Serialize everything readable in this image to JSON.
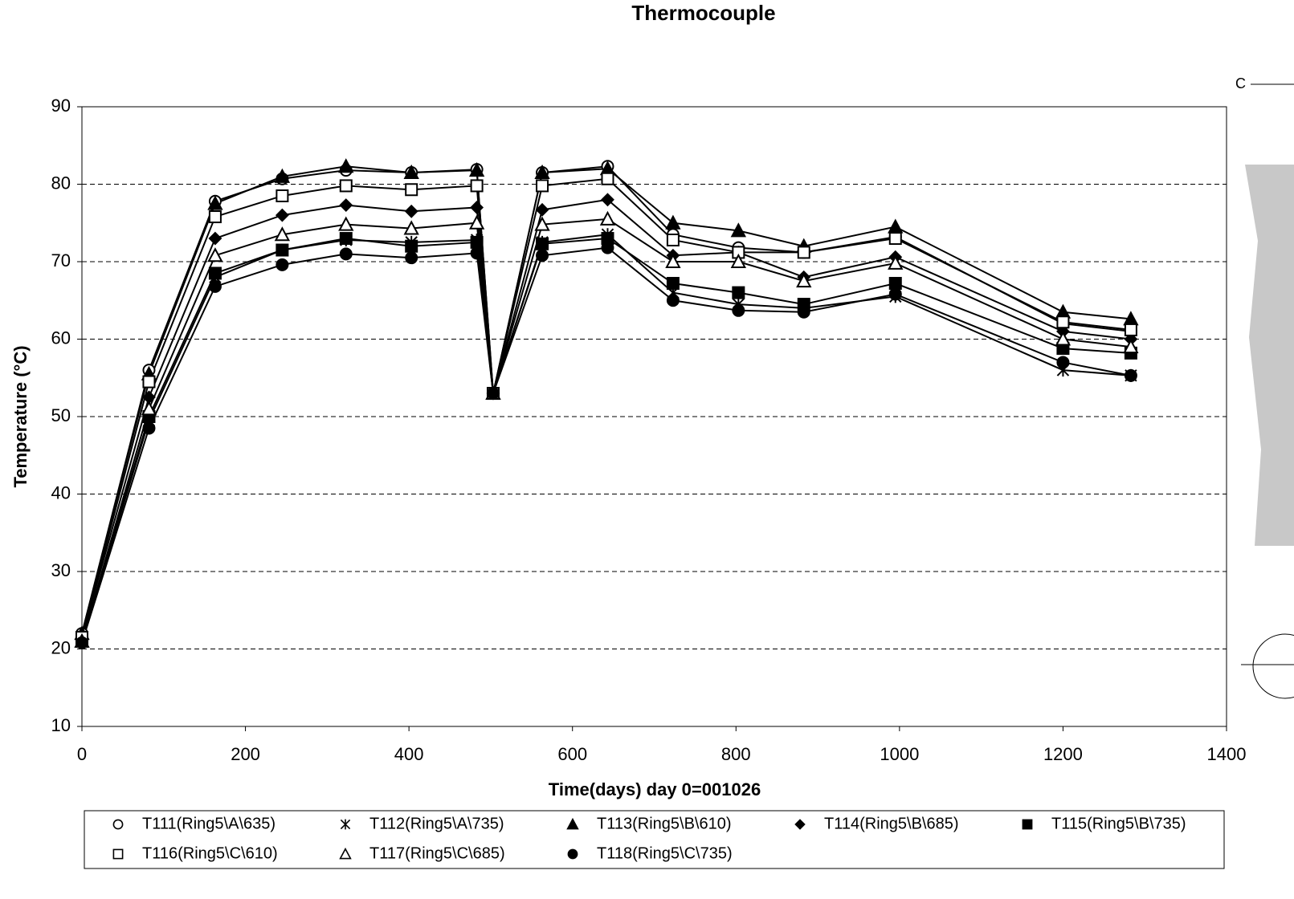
{
  "chart_data": {
    "type": "line",
    "title": "Thermocouple",
    "x_label": "Time(days)  day 0=001026",
    "y_label": "Temperature (°C)",
    "side_label": "C",
    "xlim": [
      0,
      1400
    ],
    "xticks": [
      0,
      200,
      400,
      600,
      800,
      1000,
      1200,
      1400
    ],
    "ylim": [
      10,
      90
    ],
    "yticks": [
      10,
      20,
      30,
      40,
      50,
      60,
      70,
      80,
      90
    ],
    "grid": true,
    "x": [
      0,
      82,
      163,
      245,
      323,
      403,
      483,
      503,
      563,
      643,
      723,
      803,
      883,
      995,
      1200,
      1283
    ],
    "series": [
      {
        "name": "T111(Ring5\\A\\635)",
        "color": "#000000",
        "marker": "circle-open",
        "values": [
          22,
          56,
          77.8,
          80.7,
          81.8,
          81.5,
          81.9,
          53,
          81.5,
          82.3,
          73.5,
          71.8,
          71.2,
          73.2,
          62,
          61
        ]
      },
      {
        "name": "T112(Ring5\\A\\735)",
        "color": "#000000",
        "marker": "star",
        "values": [
          21,
          49.5,
          68,
          71.5,
          72.8,
          72.5,
          72.8,
          53,
          72.5,
          73.5,
          66,
          64.5,
          64,
          65.5,
          56,
          55.3
        ]
      },
      {
        "name": "T113(Ring5\\B\\610)",
        "color": "#000000",
        "marker": "triangle-filled",
        "values": [
          22,
          55.5,
          77.5,
          81,
          82.3,
          81.5,
          81.8,
          53,
          81.5,
          82,
          75,
          74,
          72,
          74.5,
          63.5,
          62.6
        ]
      },
      {
        "name": "T114(Ring5\\B\\685)",
        "color": "#000000",
        "marker": "diamond-filled",
        "values": [
          21.5,
          52.5,
          73,
          76,
          77.3,
          76.5,
          77,
          53,
          76.7,
          78,
          70.8,
          71.2,
          68,
          70.6,
          61,
          60
        ]
      },
      {
        "name": "T115(Ring5\\B\\735)",
        "color": "#000000",
        "marker": "square-filled",
        "values": [
          21,
          50,
          68.5,
          71.5,
          73,
          72,
          72.5,
          53,
          72.3,
          73,
          67.2,
          66,
          64.5,
          67.2,
          58.8,
          58.2
        ]
      },
      {
        "name": "T116(Ring5\\C\\610)",
        "color": "#000000",
        "marker": "square-open",
        "values": [
          21.5,
          54.5,
          75.8,
          78.5,
          79.8,
          79.3,
          79.8,
          53,
          79.8,
          80.7,
          72.8,
          71.2,
          71.2,
          73,
          62.2,
          61.2
        ]
      },
      {
        "name": "T117(Ring5\\C\\685)",
        "color": "#000000",
        "marker": "triangle-open",
        "values": [
          21,
          51,
          70.8,
          73.5,
          74.8,
          74.3,
          75,
          53,
          74.8,
          75.5,
          70,
          70,
          67.5,
          69.8,
          60,
          59
        ]
      },
      {
        "name": "T118(Ring5\\C\\735)",
        "color": "#000000",
        "marker": "circle-filled",
        "values": [
          20.8,
          48.5,
          66.8,
          69.6,
          71,
          70.5,
          71.1,
          53,
          70.8,
          71.8,
          65,
          63.7,
          63.5,
          65.8,
          57,
          55.3
        ]
      }
    ]
  }
}
